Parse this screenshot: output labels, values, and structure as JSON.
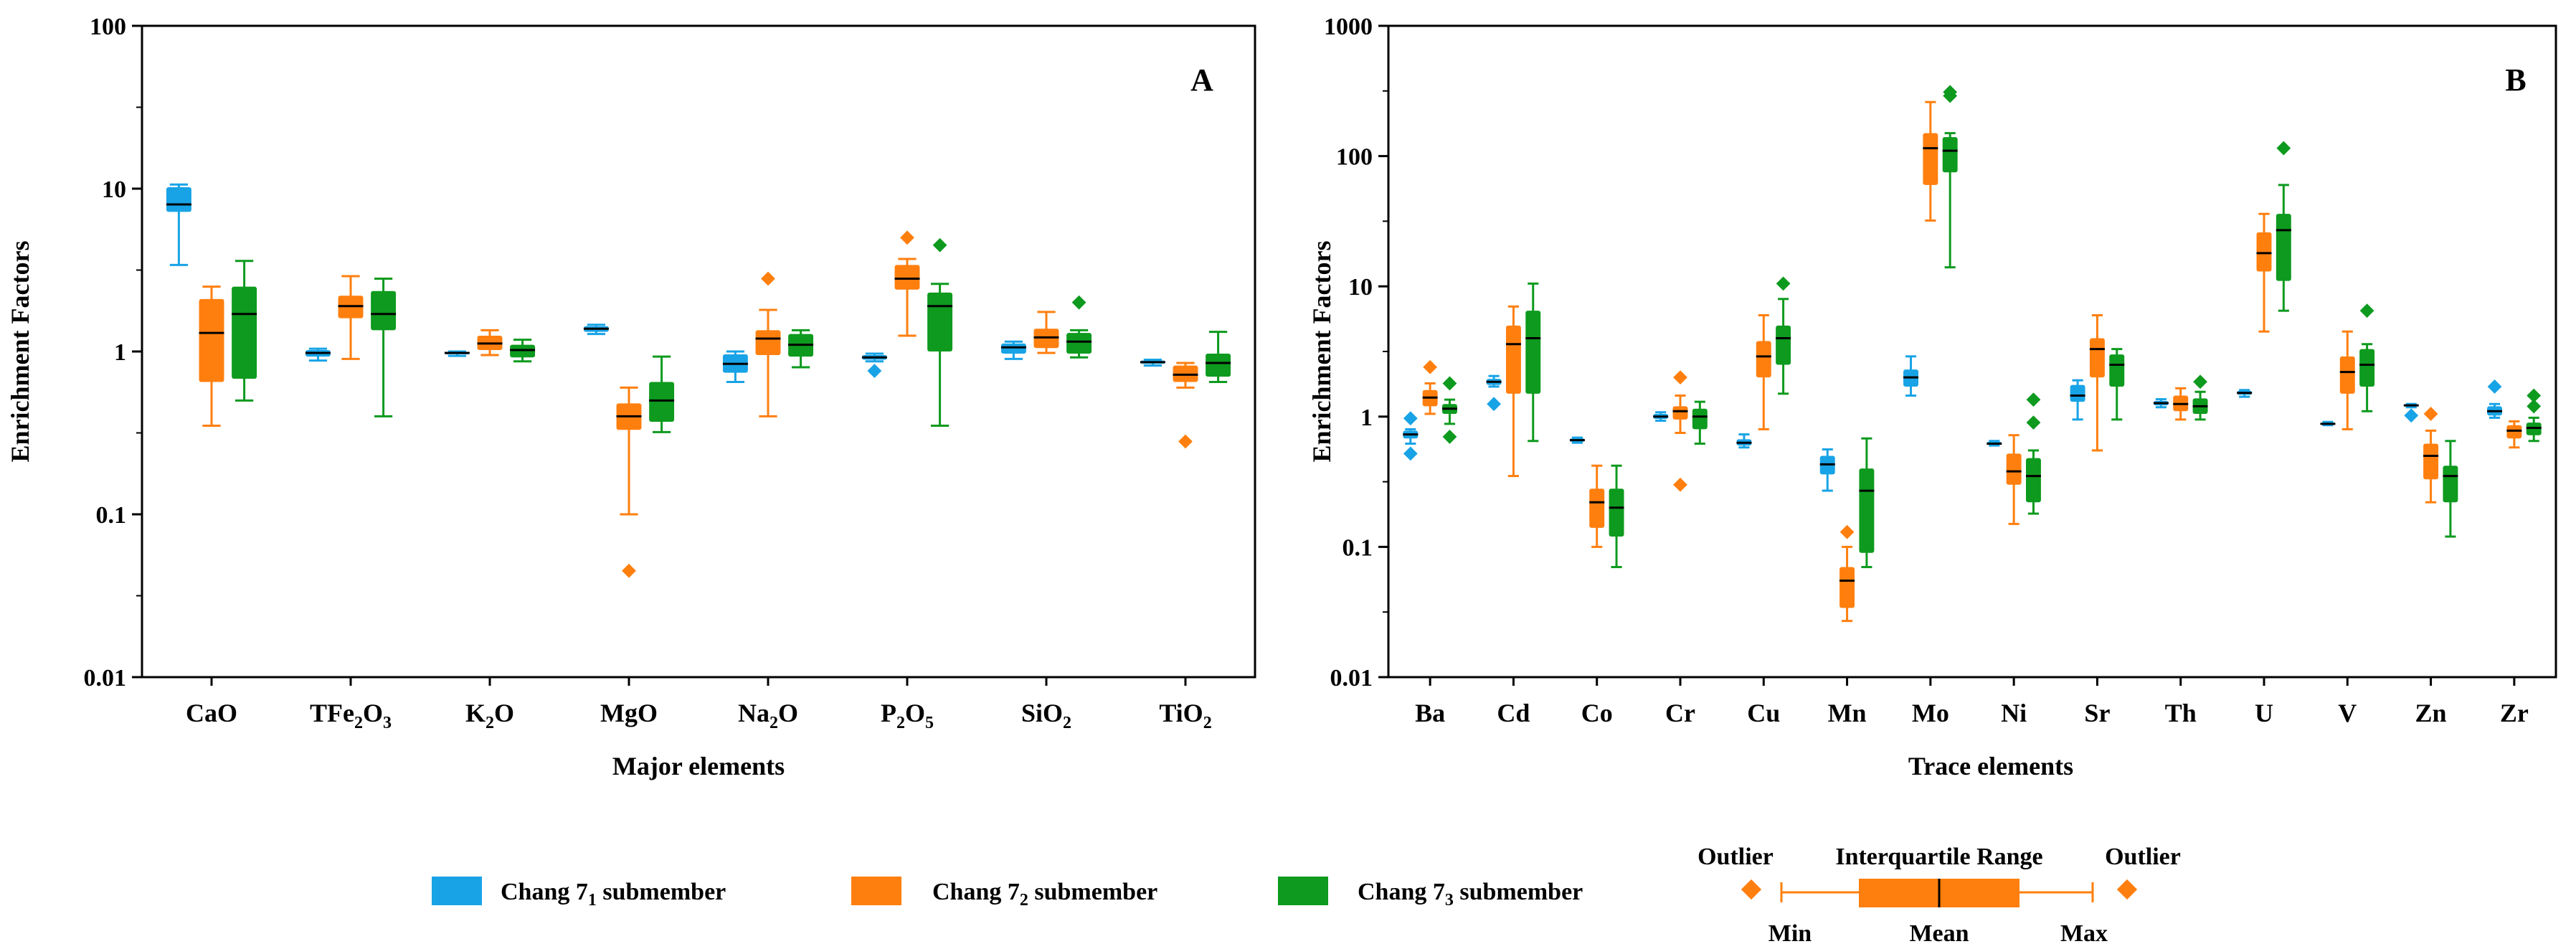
{
  "colors": {
    "c1": "#18A3E6",
    "c2": "#FF7F0E",
    "c3": "#0D9A1E",
    "median": "#000000"
  },
  "legend": {
    "items": [
      {
        "name": "Chang 7",
        "sub": "1",
        "suffix": " submember",
        "color": "#18A3E6"
      },
      {
        "name": "Chang 7",
        "sub": "2",
        "suffix": " submember",
        "color": "#FF7F0E"
      },
      {
        "name": "Chang 7",
        "sub": "3",
        "suffix": " submember",
        "color": "#0D9A1E"
      }
    ],
    "key": {
      "outlier": "Outlier",
      "iqr": "Interquartile Range",
      "min": "Min",
      "mean": "Mean",
      "max": "Max"
    }
  },
  "chart_data": [
    {
      "type": "box",
      "panel_label": "A",
      "xlabel": "Major elements",
      "ylabel": "Enrichment Factors",
      "yscale": "log",
      "ylim": [
        0.01,
        100
      ],
      "yticks": [
        "0.01",
        "0.1",
        "1",
        "10",
        "100"
      ],
      "categories": [
        {
          "base": "CaO",
          "subs": []
        },
        {
          "base": "TFe",
          "subs": [
            "2",
            "O",
            "3"
          ]
        },
        {
          "base": "K",
          "subs": [
            "2",
            "O"
          ]
        },
        {
          "base": "MgO",
          "subs": []
        },
        {
          "base": "Na",
          "subs": [
            "2",
            "O"
          ]
        },
        {
          "base": "P",
          "subs": [
            "2",
            "O",
            "5"
          ]
        },
        {
          "base": "SiO",
          "subs": [
            "2"
          ]
        },
        {
          "base": "TiO",
          "subs": [
            "2"
          ]
        }
      ],
      "series": [
        {
          "name": "Chang 7₁ submember",
          "boxes": [
            {
              "min": 3.4,
              "q1": 7.2,
              "med": 8.0,
              "q3": 10.2,
              "max": 10.6,
              "out": []
            },
            {
              "min": 0.88,
              "q1": 0.93,
              "med": 0.98,
              "q3": 1.02,
              "max": 1.04,
              "out": []
            },
            {
              "min": 0.94,
              "q1": 0.96,
              "med": 0.98,
              "q3": 0.99,
              "max": 1.0,
              "out": []
            },
            {
              "min": 1.28,
              "q1": 1.32,
              "med": 1.38,
              "q3": 1.43,
              "max": 1.46,
              "out": []
            },
            {
              "min": 0.65,
              "q1": 0.74,
              "med": 0.84,
              "q3": 0.96,
              "max": 1.0,
              "out": []
            },
            {
              "min": 0.87,
              "q1": 0.89,
              "med": 0.92,
              "q3": 0.95,
              "max": 0.97,
              "out": [
                0.76
              ]
            },
            {
              "min": 0.9,
              "q1": 0.97,
              "med": 1.06,
              "q3": 1.12,
              "max": 1.15,
              "out": []
            },
            {
              "min": 0.82,
              "q1": 0.84,
              "med": 0.86,
              "q3": 0.88,
              "max": 0.89,
              "out": []
            }
          ]
        },
        {
          "name": "Chang 7₂ submember",
          "boxes": [
            {
              "min": 0.35,
              "q1": 0.65,
              "med": 1.3,
              "q3": 2.1,
              "max": 2.5,
              "out": []
            },
            {
              "min": 0.9,
              "q1": 1.6,
              "med": 1.9,
              "q3": 2.2,
              "max": 2.9,
              "out": []
            },
            {
              "min": 0.95,
              "q1": 1.02,
              "med": 1.12,
              "q3": 1.25,
              "max": 1.35,
              "out": []
            },
            {
              "min": 0.1,
              "q1": 0.33,
              "med": 0.4,
              "q3": 0.48,
              "max": 0.6,
              "out": [
                0.045
              ]
            },
            {
              "min": 0.4,
              "q1": 0.95,
              "med": 1.2,
              "q3": 1.35,
              "max": 1.8,
              "out": [
                2.8
              ]
            },
            {
              "min": 1.25,
              "q1": 2.4,
              "med": 2.8,
              "q3": 3.4,
              "max": 3.7,
              "out": [
                5.0
              ]
            },
            {
              "min": 0.98,
              "q1": 1.05,
              "med": 1.22,
              "q3": 1.38,
              "max": 1.75,
              "out": []
            },
            {
              "min": 0.6,
              "q1": 0.65,
              "med": 0.72,
              "q3": 0.82,
              "max": 0.85,
              "out": [
                0.28
              ]
            }
          ]
        },
        {
          "name": "Chang 7₃ submember",
          "boxes": [
            {
              "min": 0.5,
              "q1": 0.68,
              "med": 1.7,
              "q3": 2.5,
              "max": 3.6,
              "out": []
            },
            {
              "min": 0.4,
              "q1": 1.35,
              "med": 1.7,
              "q3": 2.35,
              "max": 2.8,
              "out": []
            },
            {
              "min": 0.87,
              "q1": 0.92,
              "med": 1.02,
              "q3": 1.1,
              "max": 1.18,
              "out": []
            },
            {
              "min": 0.32,
              "q1": 0.37,
              "med": 0.5,
              "q3": 0.65,
              "max": 0.93,
              "out": []
            },
            {
              "min": 0.8,
              "q1": 0.93,
              "med": 1.1,
              "q3": 1.28,
              "max": 1.35,
              "out": []
            },
            {
              "min": 0.35,
              "q1": 1.0,
              "med": 1.9,
              "q3": 2.3,
              "max": 2.6,
              "out": [
                4.5
              ]
            },
            {
              "min": 0.92,
              "q1": 0.97,
              "med": 1.15,
              "q3": 1.3,
              "max": 1.35,
              "out": [
                2.0
              ]
            },
            {
              "min": 0.65,
              "q1": 0.7,
              "med": 0.85,
              "q3": 0.97,
              "max": 1.32,
              "out": []
            }
          ]
        }
      ]
    },
    {
      "type": "box",
      "panel_label": "B",
      "xlabel": "Trace elements",
      "ylabel": "Enrichment Factors",
      "yscale": "log",
      "ylim": [
        0.01,
        1000
      ],
      "yticks": [
        "0.01",
        "0.1",
        "1",
        "10",
        "100",
        "1000"
      ],
      "categories": [
        {
          "base": "Ba",
          "subs": []
        },
        {
          "base": "Cd",
          "subs": []
        },
        {
          "base": "Co",
          "subs": []
        },
        {
          "base": "Cr",
          "subs": []
        },
        {
          "base": "Cu",
          "subs": []
        },
        {
          "base": "Mn",
          "subs": []
        },
        {
          "base": "Mo",
          "subs": []
        },
        {
          "base": "Ni",
          "subs": []
        },
        {
          "base": "Sr",
          "subs": []
        },
        {
          "base": "Th",
          "subs": []
        },
        {
          "base": "U",
          "subs": []
        },
        {
          "base": "V",
          "subs": []
        },
        {
          "base": "Zn",
          "subs": []
        },
        {
          "base": "Zr",
          "subs": []
        }
      ],
      "series": [
        {
          "name": "Chang 7₁ submember",
          "boxes": [
            {
              "min": 0.62,
              "q1": 0.68,
              "med": 0.73,
              "q3": 0.78,
              "max": 0.8,
              "out": [
                0.52,
                0.97
              ]
            },
            {
              "min": 1.7,
              "q1": 1.75,
              "med": 1.85,
              "q3": 1.95,
              "max": 2.05,
              "out": [
                1.25
              ]
            },
            {
              "min": 0.63,
              "q1": 0.64,
              "med": 0.66,
              "q3": 0.68,
              "max": 0.69,
              "out": []
            },
            {
              "min": 0.93,
              "q1": 0.96,
              "med": 1.0,
              "q3": 1.05,
              "max": 1.08,
              "out": []
            },
            {
              "min": 0.58,
              "q1": 0.6,
              "med": 0.63,
              "q3": 0.67,
              "max": 0.73,
              "out": []
            },
            {
              "min": 0.27,
              "q1": 0.36,
              "med": 0.43,
              "q3": 0.5,
              "max": 0.56,
              "out": []
            },
            {
              "min": 1.45,
              "q1": 1.7,
              "med": 2.0,
              "q3": 2.3,
              "max": 2.9,
              "out": []
            },
            {
              "min": 0.6,
              "q1": 0.61,
              "med": 0.62,
              "q3": 0.64,
              "max": 0.65,
              "out": []
            },
            {
              "min": 0.95,
              "q1": 1.3,
              "med": 1.45,
              "q3": 1.75,
              "max": 1.9,
              "out": []
            },
            {
              "min": 1.18,
              "q1": 1.22,
              "med": 1.27,
              "q3": 1.32,
              "max": 1.36,
              "out": []
            },
            {
              "min": 1.42,
              "q1": 1.47,
              "med": 1.52,
              "q3": 1.58,
              "max": 1.6,
              "out": []
            },
            {
              "min": 0.86,
              "q1": 0.87,
              "med": 0.88,
              "q3": 0.9,
              "max": 0.91,
              "out": []
            },
            {
              "min": 1.18,
              "q1": 1.2,
              "med": 1.22,
              "q3": 1.24,
              "max": 1.25,
              "out": [
                1.02
              ]
            },
            {
              "min": 0.98,
              "q1": 1.02,
              "med": 1.1,
              "q3": 1.2,
              "max": 1.25,
              "out": [
                1.7
              ]
            }
          ]
        },
        {
          "name": "Chang 7₂ submember",
          "boxes": [
            {
              "min": 1.05,
              "q1": 1.2,
              "med": 1.4,
              "q3": 1.6,
              "max": 1.8,
              "out": [
                2.4
              ]
            },
            {
              "min": 0.35,
              "q1": 1.5,
              "med": 3.6,
              "q3": 5.0,
              "max": 7.0,
              "out": []
            },
            {
              "min": 0.1,
              "q1": 0.14,
              "med": 0.22,
              "q3": 0.28,
              "max": 0.42,
              "out": []
            },
            {
              "min": 0.75,
              "q1": 0.95,
              "med": 1.1,
              "q3": 1.2,
              "max": 1.45,
              "out": [
                2.0,
                0.3
              ]
            },
            {
              "min": 0.8,
              "q1": 2.0,
              "med": 2.9,
              "q3": 3.8,
              "max": 6.0,
              "out": []
            },
            {
              "min": 0.027,
              "q1": 0.034,
              "med": 0.055,
              "q3": 0.07,
              "max": 0.1,
              "out": [
                0.13
              ]
            },
            {
              "min": 32,
              "q1": 60,
              "med": 115,
              "q3": 150,
              "max": 260,
              "out": []
            },
            {
              "min": 0.15,
              "q1": 0.3,
              "med": 0.38,
              "q3": 0.52,
              "max": 0.72,
              "out": []
            },
            {
              "min": 0.55,
              "q1": 2.0,
              "med": 3.3,
              "q3": 4.0,
              "max": 6.0,
              "out": []
            },
            {
              "min": 0.95,
              "q1": 1.1,
              "med": 1.25,
              "q3": 1.45,
              "max": 1.65,
              "out": []
            },
            {
              "min": 4.5,
              "q1": 13,
              "med": 18,
              "q3": 26,
              "max": 36,
              "out": []
            },
            {
              "min": 0.8,
              "q1": 1.5,
              "med": 2.2,
              "q3": 2.9,
              "max": 4.5,
              "out": []
            },
            {
              "min": 0.22,
              "q1": 0.33,
              "med": 0.5,
              "q3": 0.62,
              "max": 0.78,
              "out": [
                1.05
              ]
            },
            {
              "min": 0.58,
              "q1": 0.68,
              "med": 0.78,
              "q3": 0.86,
              "max": 0.92,
              "out": []
            }
          ]
        },
        {
          "name": "Chang 7₃ submember",
          "boxes": [
            {
              "min": 0.88,
              "q1": 1.05,
              "med": 1.15,
              "q3": 1.25,
              "max": 1.35,
              "out": [
                1.8,
                0.7
              ]
            },
            {
              "min": 0.65,
              "q1": 1.5,
              "med": 4.0,
              "q3": 6.5,
              "max": 10.5,
              "out": []
            },
            {
              "min": 0.07,
              "q1": 0.12,
              "med": 0.2,
              "q3": 0.28,
              "max": 0.42,
              "out": []
            },
            {
              "min": 0.62,
              "q1": 0.8,
              "med": 1.0,
              "q3": 1.15,
              "max": 1.3,
              "out": []
            },
            {
              "min": 1.5,
              "q1": 2.5,
              "med": 4.0,
              "q3": 5.0,
              "max": 8.0,
              "out": [
                10.5
              ]
            },
            {
              "min": 0.07,
              "q1": 0.09,
              "med": 0.27,
              "q3": 0.4,
              "max": 0.68,
              "out": []
            },
            {
              "min": 14,
              "q1": 75,
              "med": 110,
              "q3": 140,
              "max": 150,
              "out": [
                290,
                310
              ]
            },
            {
              "min": 0.18,
              "q1": 0.22,
              "med": 0.35,
              "q3": 0.48,
              "max": 0.55,
              "out": [
                0.9,
                1.35
              ]
            },
            {
              "min": 0.95,
              "q1": 1.7,
              "med": 2.5,
              "q3": 3.0,
              "max": 3.3,
              "out": []
            },
            {
              "min": 0.95,
              "q1": 1.05,
              "med": 1.2,
              "q3": 1.38,
              "max": 1.55,
              "out": [
                1.85
              ]
            },
            {
              "min": 6.5,
              "q1": 11,
              "med": 27,
              "q3": 36,
              "max": 60,
              "out": [
                115
              ]
            },
            {
              "min": 1.1,
              "q1": 1.7,
              "med": 2.5,
              "q3": 3.3,
              "max": 3.6,
              "out": [
                6.5
              ]
            },
            {
              "min": 0.12,
              "q1": 0.22,
              "med": 0.35,
              "q3": 0.42,
              "max": 0.65,
              "out": []
            },
            {
              "min": 0.65,
              "q1": 0.72,
              "med": 0.82,
              "q3": 0.9,
              "max": 0.98,
              "out": [
                1.2,
                1.45
              ]
            }
          ]
        }
      ]
    }
  ]
}
